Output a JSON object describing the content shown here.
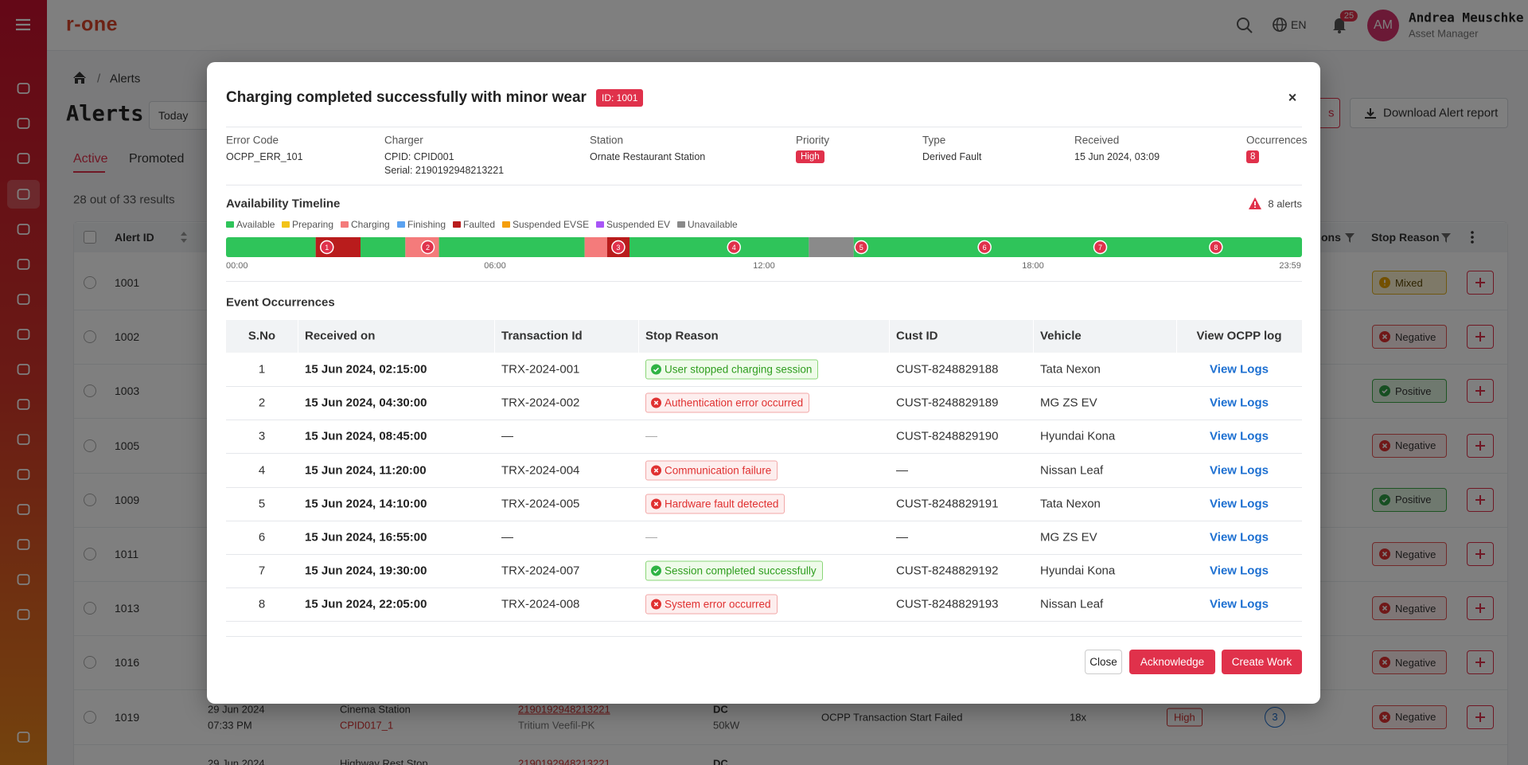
{
  "app": {
    "logo": "r-one",
    "language": "EN",
    "notification_count": "25",
    "user": {
      "initials": "AM",
      "name": "Andrea Meuschke",
      "role": "Asset Manager"
    }
  },
  "page": {
    "breadcrumb": "Alerts",
    "title": "Alerts",
    "date_filter": "Today",
    "tabs": [
      "Active",
      "Promoted"
    ],
    "results": "28 out of 33 results",
    "partial_button": "s",
    "download_button": "Download Alert report"
  },
  "alerts_table": {
    "headers": {
      "alert_id": "Alert ID",
      "partial": "ons",
      "stop_reason": "Stop Reason"
    },
    "rows": [
      {
        "id": "1001",
        "stop_reason": "Mixed",
        "tone": "mixed"
      },
      {
        "id": "1002",
        "stop_reason": "Negative",
        "tone": "negative"
      },
      {
        "id": "1003",
        "stop_reason": "Positive",
        "tone": "positive"
      },
      {
        "id": "1005",
        "stop_reason": "Negative",
        "tone": "negative"
      },
      {
        "id": "1009",
        "stop_reason": "Positive",
        "tone": "positive"
      },
      {
        "id": "1011",
        "stop_reason": "Negative",
        "tone": "negative"
      },
      {
        "id": "1013",
        "stop_reason": "Negative",
        "tone": "negative"
      },
      {
        "id": "1016",
        "stop_reason": "Negative",
        "tone": "negative"
      },
      {
        "id": "1019",
        "stop_reason": "Negative",
        "tone": "negative",
        "date": "29 Jun 2024",
        "time": "07:33 PM",
        "station": "Cinema Station",
        "cpid": "CPID017_1",
        "serial": "2190192948213221",
        "model": "Tritium Veefil-PK",
        "current": "DC",
        "power": "50kW",
        "description": "OCPP Transaction Start Failed",
        "count": "18x",
        "priority": "High",
        "occurrences": "3"
      }
    ],
    "partial_row": {
      "date": "29 Jun 2024",
      "station": "Highway Rest Stop",
      "serial": "2190192948213221",
      "current": "DC"
    }
  },
  "modal": {
    "title": "Charging completed successfully with minor wear",
    "id_badge": "ID: 1001",
    "fields": {
      "error_code": {
        "label": "Error Code",
        "value": "OCPP_ERR_101"
      },
      "charger": {
        "label": "Charger",
        "value": "CPID: CPID001",
        "value2": "Serial: 2190192948213221"
      },
      "station": {
        "label": "Station",
        "value": "Ornate Restaurant Station"
      },
      "priority": {
        "label": "Priority",
        "value": "High"
      },
      "type": {
        "label": "Type",
        "value": "Derived Fault"
      },
      "received": {
        "label": "Received",
        "value": "15 Jun 2024, 03:09"
      },
      "occurrences": {
        "label": "Occurrences",
        "value": "8"
      }
    },
    "timeline": {
      "title": "Availability Timeline",
      "alerts": "8 alerts",
      "legend": [
        {
          "name": "Available",
          "color": "#2fc45a"
        },
        {
          "name": "Preparing",
          "color": "#f2c318"
        },
        {
          "name": "Charging",
          "color": "#f47b7b"
        },
        {
          "name": "Finishing",
          "color": "#5aa2f0"
        },
        {
          "name": "Faulted",
          "color": "#b91c1c"
        },
        {
          "name": "Suspended EVSE",
          "color": "#f59e0b"
        },
        {
          "name": "Suspended EV",
          "color": "#a855f7"
        },
        {
          "name": "Unavailable",
          "color": "#8a8a8a"
        }
      ],
      "range": [
        0,
        24
      ],
      "segments": [
        {
          "status": "Available",
          "start": 0,
          "end": 2
        },
        {
          "status": "Faulted",
          "start": 2,
          "end": 3
        },
        {
          "status": "Available",
          "start": 3,
          "end": 4
        },
        {
          "status": "Charging",
          "start": 4,
          "end": 4.75
        },
        {
          "status": "Available",
          "start": 4.75,
          "end": 8
        },
        {
          "status": "Charging",
          "start": 8,
          "end": 8.5
        },
        {
          "status": "Faulted",
          "start": 8.5,
          "end": 9
        },
        {
          "status": "Available",
          "start": 9,
          "end": 13
        },
        {
          "status": "Unavailable",
          "start": 13,
          "end": 14
        },
        {
          "status": "Available",
          "start": 14,
          "end": 24
        }
      ],
      "markers": [
        {
          "label": "1",
          "time": 2.25
        },
        {
          "label": "2",
          "time": 4.5
        },
        {
          "label": "3",
          "time": 8.75
        },
        {
          "label": "4",
          "time": 11.33
        },
        {
          "label": "5",
          "time": 14.17
        },
        {
          "label": "6",
          "time": 16.92
        },
        {
          "label": "7",
          "time": 19.5
        },
        {
          "label": "8",
          "time": 22.08
        }
      ],
      "ticks": [
        {
          "value": 0,
          "label": "00:00"
        },
        {
          "value": 6,
          "label": "06:00"
        },
        {
          "value": 12,
          "label": "12:00"
        },
        {
          "value": 18,
          "label": "18:00"
        },
        {
          "value": 23.98,
          "label": "23:59"
        }
      ]
    },
    "events": {
      "title": "Event Occurrences",
      "headers": [
        "S.No",
        "Received on",
        "Transaction Id",
        "Stop Reason",
        "Cust ID",
        "Vehicle",
        "View OCPP log"
      ],
      "rows": [
        {
          "sno": "1",
          "received": "15 Jun 2024, 02:15:00",
          "transaction": "TRX-2024-001",
          "stop_reason": "User stopped charging session",
          "tone": "positive",
          "cust": "CUST-8248829188",
          "vehicle": "Tata Nexon",
          "log": "View Logs"
        },
        {
          "sno": "2",
          "received": "15 Jun 2024, 04:30:00",
          "transaction": "TRX-2024-002",
          "stop_reason": "Authentication error occurred",
          "tone": "negative",
          "cust": "CUST-8248829189",
          "vehicle": "MG ZS EV",
          "log": "View Logs"
        },
        {
          "sno": "3",
          "received": "15 Jun 2024, 08:45:00",
          "transaction": "—",
          "stop_reason": "—",
          "tone": null,
          "cust": "CUST-8248829190",
          "vehicle": "Hyundai Kona",
          "log": "View Logs"
        },
        {
          "sno": "4",
          "received": "15 Jun 2024, 11:20:00",
          "transaction": "TRX-2024-004",
          "stop_reason": "Communication failure",
          "tone": "negative",
          "cust": "—",
          "vehicle": "Nissan Leaf",
          "log": "View Logs"
        },
        {
          "sno": "5",
          "received": "15 Jun 2024, 14:10:00",
          "transaction": "TRX-2024-005",
          "stop_reason": "Hardware fault detected",
          "tone": "negative",
          "cust": "CUST-8248829191",
          "vehicle": "Tata Nexon",
          "log": "View Logs"
        },
        {
          "sno": "6",
          "received": "15 Jun 2024, 16:55:00",
          "transaction": "—",
          "stop_reason": "—",
          "tone": null,
          "cust": "—",
          "vehicle": "MG ZS EV",
          "log": "View Logs"
        },
        {
          "sno": "7",
          "received": "15 Jun 2024, 19:30:00",
          "transaction": "TRX-2024-007",
          "stop_reason": "Session completed successfully",
          "tone": "positive",
          "cust": "CUST-8248829192",
          "vehicle": "Hyundai Kona",
          "log": "View Logs"
        },
        {
          "sno": "8",
          "received": "15 Jun 2024, 22:05:00",
          "transaction": "TRX-2024-008",
          "stop_reason": "System error occurred",
          "tone": "negative",
          "cust": "CUST-8248829193",
          "vehicle": "Nissan Leaf",
          "log": "View Logs"
        }
      ]
    },
    "buttons": {
      "close": "Close",
      "acknowledge": "Acknowledge",
      "create": "Create Work"
    }
  }
}
